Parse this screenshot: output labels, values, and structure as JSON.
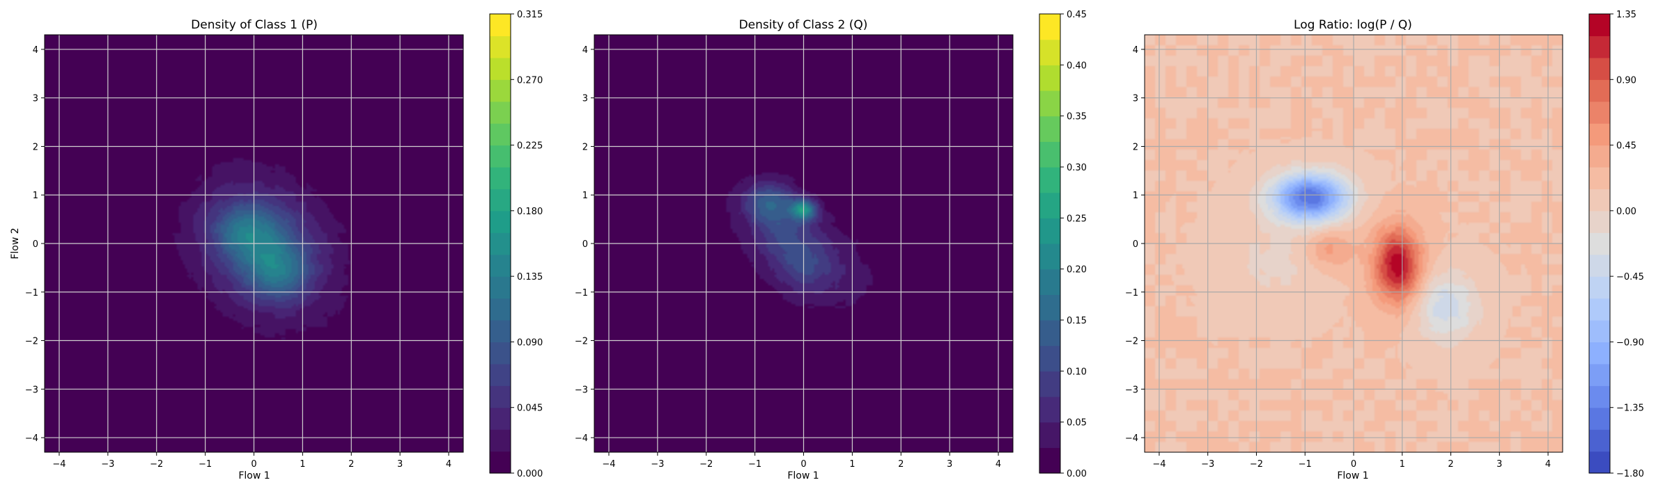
{
  "chart_data": [
    {
      "type": "heatmap",
      "title": "Density of Class 1 (P)",
      "xlabel": "Flow 1",
      "ylabel": "Flow 2",
      "xlim": [
        -4.3,
        4.3
      ],
      "ylim": [
        -4.3,
        4.3
      ],
      "xticks": [
        -4,
        -3,
        -2,
        -1,
        0,
        1,
        2,
        3,
        4
      ],
      "yticks": [
        -4,
        -3,
        -2,
        -1,
        0,
        1,
        2,
        3,
        4
      ],
      "grid": true,
      "colormap": "viridis",
      "colorbar": {
        "min": 0.0,
        "max": 0.315,
        "levels": 21,
        "ticks": [
          "0.000",
          "0.045",
          "0.090",
          "0.135",
          "0.180",
          "0.225",
          "0.270",
          "0.315"
        ]
      },
      "blobs": [
        {
          "x": 0.2,
          "y": -0.1,
          "sx": 1.05,
          "sy": 1.05,
          "rho": -0.25,
          "peak": 0.06
        },
        {
          "x": 0.1,
          "y": 0.1,
          "sx": 0.55,
          "sy": 0.5,
          "rho": 0.0,
          "peak": 0.06
        },
        {
          "x": 0.5,
          "y": -0.6,
          "sx": 0.45,
          "sy": 0.4,
          "rho": 0.0,
          "peak": 0.07
        },
        {
          "x": -0.3,
          "y": 0.3,
          "sx": 0.4,
          "sy": 0.35,
          "rho": 0.0,
          "peak": 0.04
        }
      ]
    },
    {
      "type": "heatmap",
      "title": "Density of Class 2 (Q)",
      "xlabel": "Flow 1",
      "ylabel": "",
      "xlim": [
        -4.3,
        4.3
      ],
      "ylim": [
        -4.3,
        4.3
      ],
      "xticks": [
        -4,
        -3,
        -2,
        -1,
        0,
        1,
        2,
        3,
        4
      ],
      "yticks": [
        -4,
        -3,
        -2,
        -1,
        0,
        1,
        2,
        3,
        4
      ],
      "grid": true,
      "colormap": "viridis",
      "colorbar": {
        "min": 0.0,
        "max": 0.45,
        "levels": 18,
        "ticks": [
          "0.00",
          "0.05",
          "0.10",
          "0.15",
          "0.20",
          "0.25",
          "0.30",
          "0.35",
          "0.40",
          "0.45"
        ]
      },
      "blobs": [
        {
          "x": 0.0,
          "y": -0.1,
          "sx": 1.1,
          "sy": 0.9,
          "rho": -0.55,
          "peak": 0.05
        },
        {
          "x": -0.7,
          "y": 0.85,
          "sx": 0.35,
          "sy": 0.3,
          "rho": 0.0,
          "peak": 0.12
        },
        {
          "x": 0.0,
          "y": 0.7,
          "sx": 0.18,
          "sy": 0.15,
          "rho": 0.0,
          "peak": 0.2
        },
        {
          "x": 0.0,
          "y": -0.5,
          "sx": 0.45,
          "sy": 0.4,
          "rho": 0.0,
          "peak": 0.06
        },
        {
          "x": -0.4,
          "y": 0.2,
          "sx": 0.4,
          "sy": 0.35,
          "rho": 0.0,
          "peak": 0.05
        }
      ]
    },
    {
      "type": "heatmap",
      "title": "Log Ratio: log(P / Q)",
      "xlabel": "Flow 1",
      "ylabel": "",
      "xlim": [
        -4.3,
        4.3
      ],
      "ylim": [
        -4.3,
        4.3
      ],
      "xticks": [
        -4,
        -3,
        -2,
        -1,
        0,
        1,
        2,
        3,
        4
      ],
      "yticks": [
        -4,
        -3,
        -2,
        -1,
        0,
        1,
        2,
        3,
        4
      ],
      "grid": true,
      "colormap": "coolwarm",
      "colorbar": {
        "min": -1.8,
        "max": 1.35,
        "levels": 21,
        "ticks": [
          "-1.80",
          "-1.35",
          "-0.90",
          "-0.45",
          "0.00",
          "0.45",
          "0.90",
          "1.35"
        ]
      },
      "background": 0.15,
      "blobs": [
        {
          "x": -0.9,
          "y": 0.95,
          "sx": 0.55,
          "sy": 0.35,
          "rho": 0.0,
          "peak": -1.6
        },
        {
          "x": 0.9,
          "y": -0.45,
          "sx": 0.35,
          "sy": 0.55,
          "rho": 0.0,
          "peak": 1.15
        },
        {
          "x": 1.9,
          "y": -1.3,
          "sx": 0.45,
          "sy": 0.5,
          "rho": 0.0,
          "peak": -0.55
        },
        {
          "x": -0.5,
          "y": -0.1,
          "sx": 0.35,
          "sy": 0.3,
          "rho": 0.0,
          "peak": 0.35
        },
        {
          "x": -1.6,
          "y": -0.4,
          "sx": 0.7,
          "sy": 0.6,
          "rho": 0.0,
          "peak": -0.2
        }
      ]
    }
  ]
}
